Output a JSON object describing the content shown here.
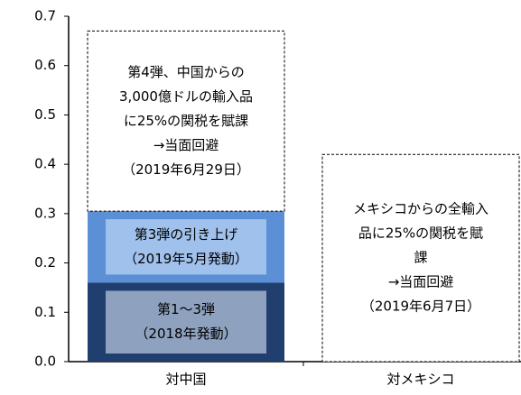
{
  "chart_data": {
    "type": "stacked_bar",
    "categories": [
      "対中国",
      "対メキシコ"
    ],
    "series": [
      {
        "label": [
          "第1～3弾",
          "（2018年発動）"
        ],
        "color": "#203f6f",
        "inner_color": "#8ea2c0",
        "values": [
          0.16,
          null
        ]
      },
      {
        "label": [
          "第3弾の引き上げ",
          "（2019年5月発動）"
        ],
        "color": "#5b8fd6",
        "inner_color": "#9fc1ec",
        "values": [
          0.145,
          null
        ]
      },
      {
        "label": [
          "第4弾、中国からの",
          "3,000億ドルの輸入品",
          "に25%の関税を賦課",
          "→当面回避",
          "（2019年6月29日）"
        ],
        "color": "#ffffff",
        "dashed": true,
        "values": [
          0.365,
          null
        ]
      },
      {
        "label": [
          "メキシコからの全輸入",
          "品に25%の関税を賦",
          "課",
          "→当面回避",
          "（2019年6月7日）"
        ],
        "color": "#ffffff",
        "dashed": true,
        "values": [
          null,
          0.42
        ]
      }
    ],
    "ylim": [
      0,
      0.7
    ],
    "yticks": [
      {
        "value": 0,
        "label": "0.0"
      },
      0.1,
      0.2,
      0.3,
      0.4,
      0.5,
      0.6,
      0.7
    ]
  }
}
